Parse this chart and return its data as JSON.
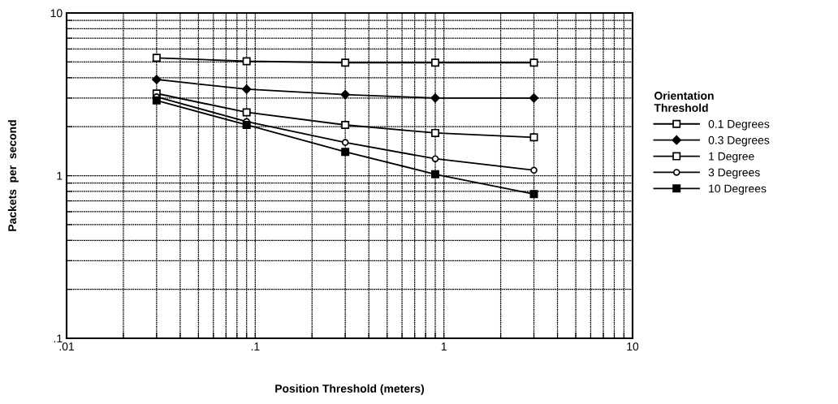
{
  "chart_data": {
    "type": "line",
    "xlabel": "Position Threshold (meters)",
    "ylabel": "Packets  per  second",
    "legend_title": "Orientation\nThreshold",
    "log": "xy",
    "grid": true,
    "legend": "right",
    "line_style": "solid",
    "x": [
      0.03,
      0.09,
      0.3,
      0.9,
      3
    ],
    "xlim": [
      0.01,
      10
    ],
    "xticks": [
      {
        "value": 0.01,
        "label": ".01"
      },
      {
        "value": 0.02,
        "label": null
      },
      {
        "value": 0.03,
        "label": null
      },
      {
        "value": 0.04,
        "label": null
      },
      {
        "value": 0.05,
        "label": null
      },
      {
        "value": 0.06,
        "label": null
      },
      {
        "value": 0.07,
        "label": null
      },
      {
        "value": 0.08,
        "label": null
      },
      {
        "value": 0.09,
        "label": null
      },
      {
        "value": 0.1,
        "label": ".1"
      },
      {
        "value": 0.2,
        "label": null
      },
      {
        "value": 0.3,
        "label": null
      },
      {
        "value": 0.4,
        "label": null
      },
      {
        "value": 0.5,
        "label": null
      },
      {
        "value": 0.6,
        "label": null
      },
      {
        "value": 0.7,
        "label": null
      },
      {
        "value": 0.8,
        "label": null
      },
      {
        "value": 0.9,
        "label": null
      },
      1,
      {
        "value": 2,
        "label": null
      },
      {
        "value": 3,
        "label": null
      },
      {
        "value": 4,
        "label": null
      },
      {
        "value": 5,
        "label": null
      },
      {
        "value": 6,
        "label": null
      },
      {
        "value": 7,
        "label": null
      },
      {
        "value": 8,
        "label": null
      },
      {
        "value": 9,
        "label": null
      },
      10
    ],
    "ylim": [
      0.1,
      10
    ],
    "yticks": [
      {
        "value": 0.1,
        "label": ".1"
      },
      {
        "value": 0.2,
        "label": null
      },
      {
        "value": 0.3,
        "label": null
      },
      {
        "value": 0.4,
        "label": null
      },
      {
        "value": 0.5,
        "label": null
      },
      {
        "value": 0.6,
        "label": null
      },
      {
        "value": 0.7,
        "label": null
      },
      {
        "value": 0.8,
        "label": null
      },
      {
        "value": 0.9,
        "label": null
      },
      1,
      {
        "value": 2,
        "label": null
      },
      {
        "value": 3,
        "label": null
      },
      {
        "value": 4,
        "label": null
      },
      {
        "value": 5,
        "label": null
      },
      {
        "value": 6,
        "label": null
      },
      {
        "value": 7,
        "label": null
      },
      {
        "value": 8,
        "label": null
      },
      {
        "value": 9,
        "label": null
      },
      10
    ],
    "series": [
      {
        "name": "0.1 Degrees",
        "color": "#000000",
        "marker": "square",
        "values": [
          5.3,
          5.05,
          4.95,
          4.95,
          4.95
        ]
      },
      {
        "name": "0.3 Degrees",
        "color": "#000000",
        "marker": "diamond",
        "values": [
          3.9,
          3.4,
          3.15,
          3.0,
          3.0
        ]
      },
      {
        "name": "1 Degree",
        "color": "#000000",
        "marker": "square",
        "values": [
          3.2,
          2.45,
          2.05,
          1.83,
          1.72
        ]
      },
      {
        "name": "3 Degrees",
        "color": "#000000",
        "marker": "circle",
        "values": [
          3.05,
          2.15,
          1.6,
          1.27,
          1.08
        ]
      },
      {
        "name": "10 Degrees",
        "color": "#000000",
        "marker": "square",
        "values": [
          2.9,
          2.05,
          1.4,
          1.02,
          0.77
        ]
      }
    ]
  }
}
